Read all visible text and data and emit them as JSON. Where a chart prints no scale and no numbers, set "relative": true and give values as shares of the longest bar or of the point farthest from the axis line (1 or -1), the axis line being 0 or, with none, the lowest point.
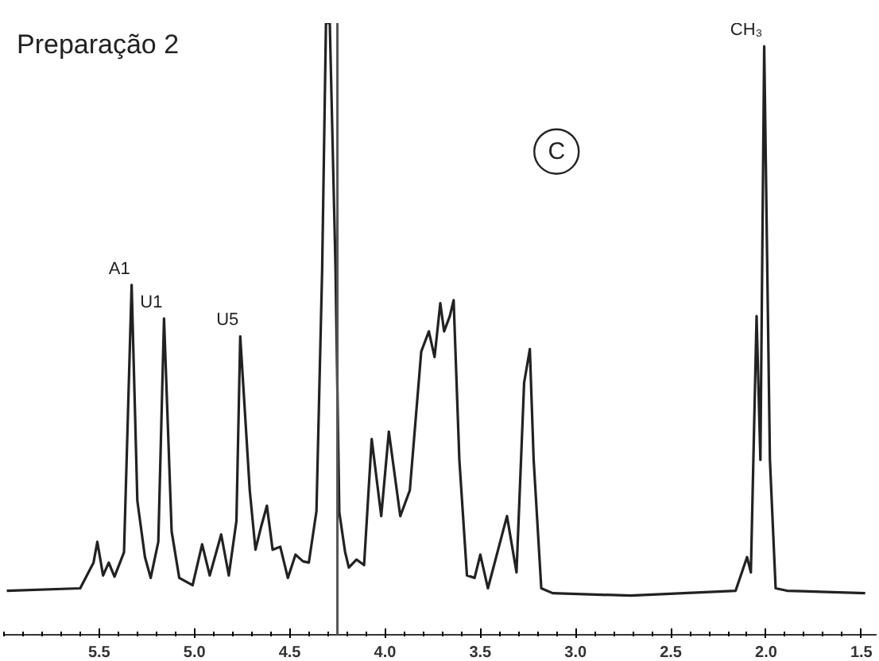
{
  "chart_data": {
    "type": "line",
    "relative": true,
    "title": "Preparação 2",
    "annotations": [
      {
        "text": "A1",
        "x": 5.33,
        "y": 0.572
      },
      {
        "text": "U1",
        "x": 5.16,
        "y": 0.517
      },
      {
        "text": "U5",
        "x": 4.76,
        "y": 0.488
      },
      {
        "text": "CH₃",
        "x": 2.01,
        "y": 0.962
      },
      "C"
    ],
    "xlim": [
      6.0,
      1.42
    ],
    "xticks": [
      5.5,
      {
        "value": 5,
        "label": "5.0"
      },
      4.5,
      {
        "value": 4,
        "label": "4.0"
      },
      3.5,
      {
        "value": 3,
        "label": "3.0"
      },
      2.5,
      {
        "value": 2,
        "label": "2.0"
      },
      1.5
    ],
    "grid": false,
    "marker": "none",
    "line_style": "solid",
    "ref_lines": [
      {
        "axis": "x",
        "value": 4.25,
        "label": null,
        "color": "#555555"
      }
    ],
    "series": [
      {
        "color": "#222222",
        "x": [
          5.985,
          5.6,
          5.53,
          5.51,
          5.48,
          5.45,
          5.42,
          5.37,
          5.33,
          5.3,
          5.26,
          5.23,
          5.19,
          5.16,
          5.12,
          5.08,
          5.01,
          4.96,
          4.92,
          4.86,
          4.82,
          4.78,
          4.76,
          4.71,
          4.68,
          4.65,
          4.62,
          4.59,
          4.55,
          4.51,
          4.47,
          4.43,
          4.4,
          4.36,
          4.33,
          4.31,
          4.29,
          4.26,
          4.24,
          4.21,
          4.19,
          4.15,
          4.11,
          4.07,
          4.02,
          3.98,
          3.92,
          3.87,
          3.81,
          3.77,
          3.74,
          3.71,
          3.69,
          3.66,
          3.64,
          3.61,
          3.57,
          3.53,
          3.5,
          3.46,
          3.36,
          3.31,
          3.27,
          3.24,
          3.22,
          3.18,
          3.12,
          2.71,
          2.16,
          2.1,
          2.08,
          2.05,
          2.03,
          2.01,
          1.98,
          1.95,
          1.89,
          1.48
        ],
        "values": [
          0.072,
          0.076,
          0.118,
          0.152,
          0.097,
          0.118,
          0.095,
          0.135,
          0.572,
          0.219,
          0.127,
          0.093,
          0.152,
          0.517,
          0.169,
          0.093,
          0.081,
          0.148,
          0.097,
          0.164,
          0.097,
          0.186,
          0.488,
          0.236,
          0.139,
          0.177,
          0.211,
          0.139,
          0.144,
          0.093,
          0.131,
          0.12,
          0.118,
          0.202,
          0.597,
          1.0,
          1.0,
          0.6,
          0.2,
          0.136,
          0.11,
          0.123,
          0.114,
          0.32,
          0.194,
          0.332,
          0.194,
          0.236,
          0.463,
          0.496,
          0.454,
          0.542,
          0.496,
          0.521,
          0.547,
          0.286,
          0.097,
          0.093,
          0.131,
          0.076,
          0.194,
          0.102,
          0.412,
          0.467,
          0.286,
          0.076,
          0.068,
          0.064,
          0.072,
          0.127,
          0.102,
          0.521,
          0.286,
          0.962,
          0.286,
          0.076,
          0.072,
          0.068
        ]
      }
    ]
  }
}
